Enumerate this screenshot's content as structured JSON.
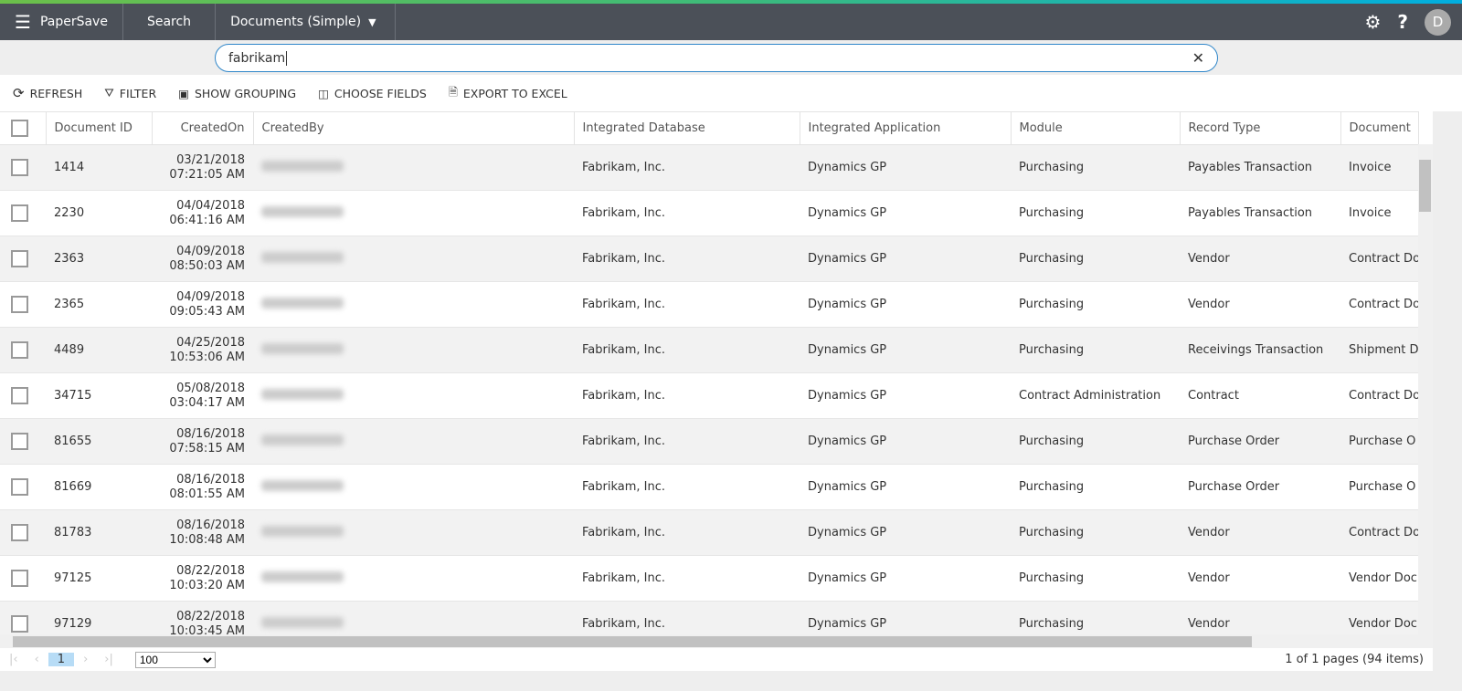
{
  "app": {
    "title": "PaperSave",
    "nav_search": "Search",
    "nav_view": "Documents (Simple)",
    "avatar_initial": "D",
    "accent_colors": [
      "#6cc04a",
      "#00aee0"
    ],
    "nav_color": "#4b5058"
  },
  "search": {
    "value": "fabrikam"
  },
  "toolbar": {
    "refresh": "REFRESH",
    "filter": "FILTER",
    "grouping": "SHOW GROUPING",
    "fields": "CHOOSE FIELDS",
    "export": "EXPORT TO EXCEL"
  },
  "columns": [
    "Document ID",
    "CreatedOn",
    "CreatedBy",
    "Integrated Database",
    "Integrated Application",
    "Module",
    "Record Type",
    "Document"
  ],
  "rows": [
    {
      "id": "1414",
      "date": "03/21/2018",
      "time": "07:21:05 AM",
      "db": "Fabrikam, Inc.",
      "app": "Dynamics GP",
      "module": "Purchasing",
      "record": "Payables Transaction",
      "doc": "Invoice"
    },
    {
      "id": "2230",
      "date": "04/04/2018",
      "time": "06:41:16 AM",
      "db": "Fabrikam, Inc.",
      "app": "Dynamics GP",
      "module": "Purchasing",
      "record": "Payables Transaction",
      "doc": "Invoice"
    },
    {
      "id": "2363",
      "date": "04/09/2018",
      "time": "08:50:03 AM",
      "db": "Fabrikam, Inc.",
      "app": "Dynamics GP",
      "module": "Purchasing",
      "record": "Vendor",
      "doc": "Contract Do"
    },
    {
      "id": "2365",
      "date": "04/09/2018",
      "time": "09:05:43 AM",
      "db": "Fabrikam, Inc.",
      "app": "Dynamics GP",
      "module": "Purchasing",
      "record": "Vendor",
      "doc": "Contract Do"
    },
    {
      "id": "4489",
      "date": "04/25/2018",
      "time": "10:53:06 AM",
      "db": "Fabrikam, Inc.",
      "app": "Dynamics GP",
      "module": "Purchasing",
      "record": "Receivings Transaction",
      "doc": "Shipment D"
    },
    {
      "id": "34715",
      "date": "05/08/2018",
      "time": "03:04:17 AM",
      "db": "Fabrikam, Inc.",
      "app": "Dynamics GP",
      "module": "Contract Administration",
      "record": "Contract",
      "doc": "Contract Do"
    },
    {
      "id": "81655",
      "date": "08/16/2018",
      "time": "07:58:15 AM",
      "db": "Fabrikam, Inc.",
      "app": "Dynamics GP",
      "module": "Purchasing",
      "record": "Purchase Order",
      "doc": "Purchase O"
    },
    {
      "id": "81669",
      "date": "08/16/2018",
      "time": "08:01:55 AM",
      "db": "Fabrikam, Inc.",
      "app": "Dynamics GP",
      "module": "Purchasing",
      "record": "Purchase Order",
      "doc": "Purchase O"
    },
    {
      "id": "81783",
      "date": "08/16/2018",
      "time": "10:08:48 AM",
      "db": "Fabrikam, Inc.",
      "app": "Dynamics GP",
      "module": "Purchasing",
      "record": "Vendor",
      "doc": "Contract Do"
    },
    {
      "id": "97125",
      "date": "08/22/2018",
      "time": "10:03:20 AM",
      "db": "Fabrikam, Inc.",
      "app": "Dynamics GP",
      "module": "Purchasing",
      "record": "Vendor",
      "doc": "Vendor Doc"
    },
    {
      "id": "97129",
      "date": "08/22/2018",
      "time": "10:03:45 AM",
      "db": "Fabrikam, Inc.",
      "app": "Dynamics GP",
      "module": "Purchasing",
      "record": "Vendor",
      "doc": "Vendor Doc"
    }
  ],
  "pager": {
    "page": "1",
    "page_size": "100",
    "info": "1 of 1 pages (94 items)"
  }
}
